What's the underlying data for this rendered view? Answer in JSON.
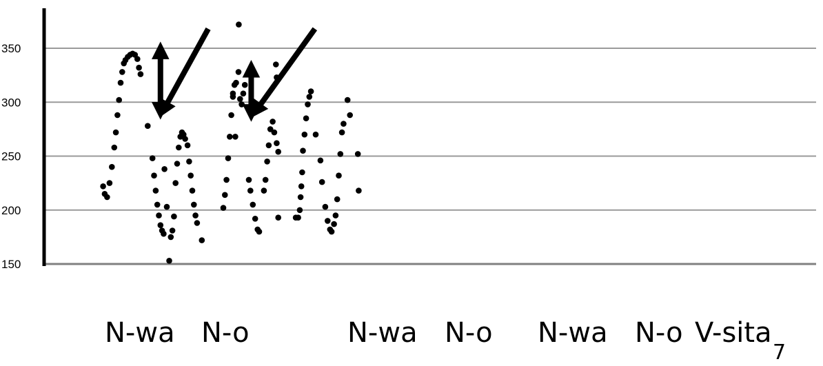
{
  "chart_data": {
    "type": "scatter",
    "title": "",
    "xlabel": "",
    "ylabel": "",
    "ylim": [
      150,
      375
    ],
    "yticks": [
      150,
      200,
      250,
      300,
      350
    ],
    "ytick_labels": [
      "150",
      "200",
      "250",
      "300",
      "350"
    ],
    "grid": true,
    "x_categories": [
      "N-wa",
      "N-o",
      "N-wa",
      "N-o",
      "N-wa",
      "N-o",
      "V-sita"
    ],
    "series": [
      {
        "color": "#000000",
        "points": [
          [
            0.2,
            222
          ],
          [
            0.3,
            215
          ],
          [
            0.45,
            212
          ],
          [
            0.6,
            225
          ],
          [
            0.75,
            240
          ],
          [
            0.9,
            258
          ],
          [
            1.0,
            272
          ],
          [
            1.1,
            288
          ],
          [
            1.2,
            302
          ],
          [
            1.3,
            318
          ],
          [
            1.4,
            328
          ],
          [
            1.5,
            336
          ],
          [
            1.6,
            339
          ],
          [
            1.75,
            342
          ],
          [
            1.9,
            344
          ],
          [
            2.05,
            345
          ],
          [
            2.2,
            344
          ],
          [
            2.35,
            340
          ],
          [
            2.45,
            332
          ],
          [
            2.55,
            326
          ],
          [
            3.0,
            278
          ],
          [
            3.3,
            248
          ],
          [
            3.4,
            232
          ],
          [
            3.5,
            218
          ],
          [
            3.6,
            205
          ],
          [
            3.7,
            195
          ],
          [
            3.8,
            186
          ],
          [
            3.9,
            181
          ],
          [
            4.0,
            178
          ],
          [
            4.05,
            238
          ],
          [
            4.2,
            203
          ],
          [
            4.35,
            153
          ],
          [
            4.45,
            175
          ],
          [
            4.55,
            181
          ],
          [
            4.65,
            194
          ],
          [
            4.75,
            225
          ],
          [
            4.85,
            243
          ],
          [
            4.95,
            258
          ],
          [
            5.05,
            268
          ],
          [
            5.15,
            272
          ],
          [
            5.25,
            270
          ],
          [
            5.35,
            266
          ],
          [
            5.5,
            260
          ],
          [
            5.6,
            245
          ],
          [
            5.7,
            232
          ],
          [
            5.8,
            218
          ],
          [
            5.9,
            205
          ],
          [
            6.0,
            195
          ],
          [
            6.1,
            188
          ],
          [
            6.4,
            172
          ],
          [
            7.75,
            202
          ],
          [
            7.85,
            214
          ],
          [
            7.95,
            228
          ],
          [
            8.05,
            248
          ],
          [
            8.15,
            268
          ],
          [
            8.25,
            288
          ],
          [
            8.35,
            305
          ],
          [
            8.45,
            316
          ],
          [
            8.55,
            318
          ],
          [
            8.35,
            308
          ],
          [
            8.5,
            268
          ],
          [
            8.7,
            328
          ],
          [
            8.8,
            303
          ],
          [
            8.9,
            298
          ],
          [
            9.0,
            308
          ],
          [
            9.1,
            316
          ],
          [
            8.72,
            372
          ],
          [
            9.35,
            228
          ],
          [
            9.45,
            218
          ],
          [
            9.6,
            205
          ],
          [
            9.75,
            192
          ],
          [
            9.9,
            182
          ],
          [
            10.0,
            180
          ],
          [
            10.3,
            218
          ],
          [
            10.4,
            228
          ],
          [
            10.5,
            245
          ],
          [
            10.6,
            260
          ],
          [
            10.7,
            275
          ],
          [
            10.85,
            282
          ],
          [
            10.95,
            272
          ],
          [
            11.1,
            262
          ],
          [
            11.2,
            254
          ],
          [
            11.05,
            335
          ],
          [
            11.1,
            323
          ],
          [
            11.2,
            193
          ],
          [
            12.3,
            193
          ],
          [
            12.45,
            193
          ],
          [
            12.55,
            200
          ],
          [
            12.6,
            212
          ],
          [
            12.65,
            222
          ],
          [
            12.7,
            235
          ],
          [
            12.75,
            255
          ],
          [
            12.85,
            270
          ],
          [
            12.95,
            285
          ],
          [
            13.05,
            298
          ],
          [
            13.15,
            305
          ],
          [
            13.25,
            310
          ],
          [
            13.55,
            270
          ],
          [
            13.85,
            246
          ],
          [
            13.95,
            226
          ],
          [
            14.15,
            203
          ],
          [
            14.3,
            190
          ],
          [
            14.45,
            182
          ],
          [
            14.55,
            180
          ],
          [
            14.7,
            187
          ],
          [
            14.8,
            195
          ],
          [
            14.9,
            210
          ],
          [
            15.0,
            232
          ],
          [
            15.1,
            252
          ],
          [
            15.2,
            272
          ],
          [
            15.3,
            280
          ],
          [
            15.55,
            302
          ],
          [
            15.7,
            288
          ],
          [
            16.2,
            252
          ],
          [
            16.25,
            218
          ]
        ]
      }
    ],
    "annotations": [
      {
        "type": "double-arrow",
        "x": 3.8,
        "y_from": 292,
        "y_to": 348
      },
      {
        "type": "arrow",
        "from": [
          6.8,
          368
        ],
        "to": [
          4.0,
          293
        ]
      },
      {
        "type": "double-arrow",
        "x": 9.5,
        "y_from": 290,
        "y_to": 331
      },
      {
        "type": "arrow",
        "from": [
          13.5,
          368
        ],
        "to": [
          9.8,
          292
        ]
      }
    ]
  },
  "labels": {
    "words": [
      "N-wa",
      "N-o",
      "N-wa",
      "N-o",
      "N-wa",
      "N-o",
      "V-sita"
    ],
    "page_number": "7"
  }
}
